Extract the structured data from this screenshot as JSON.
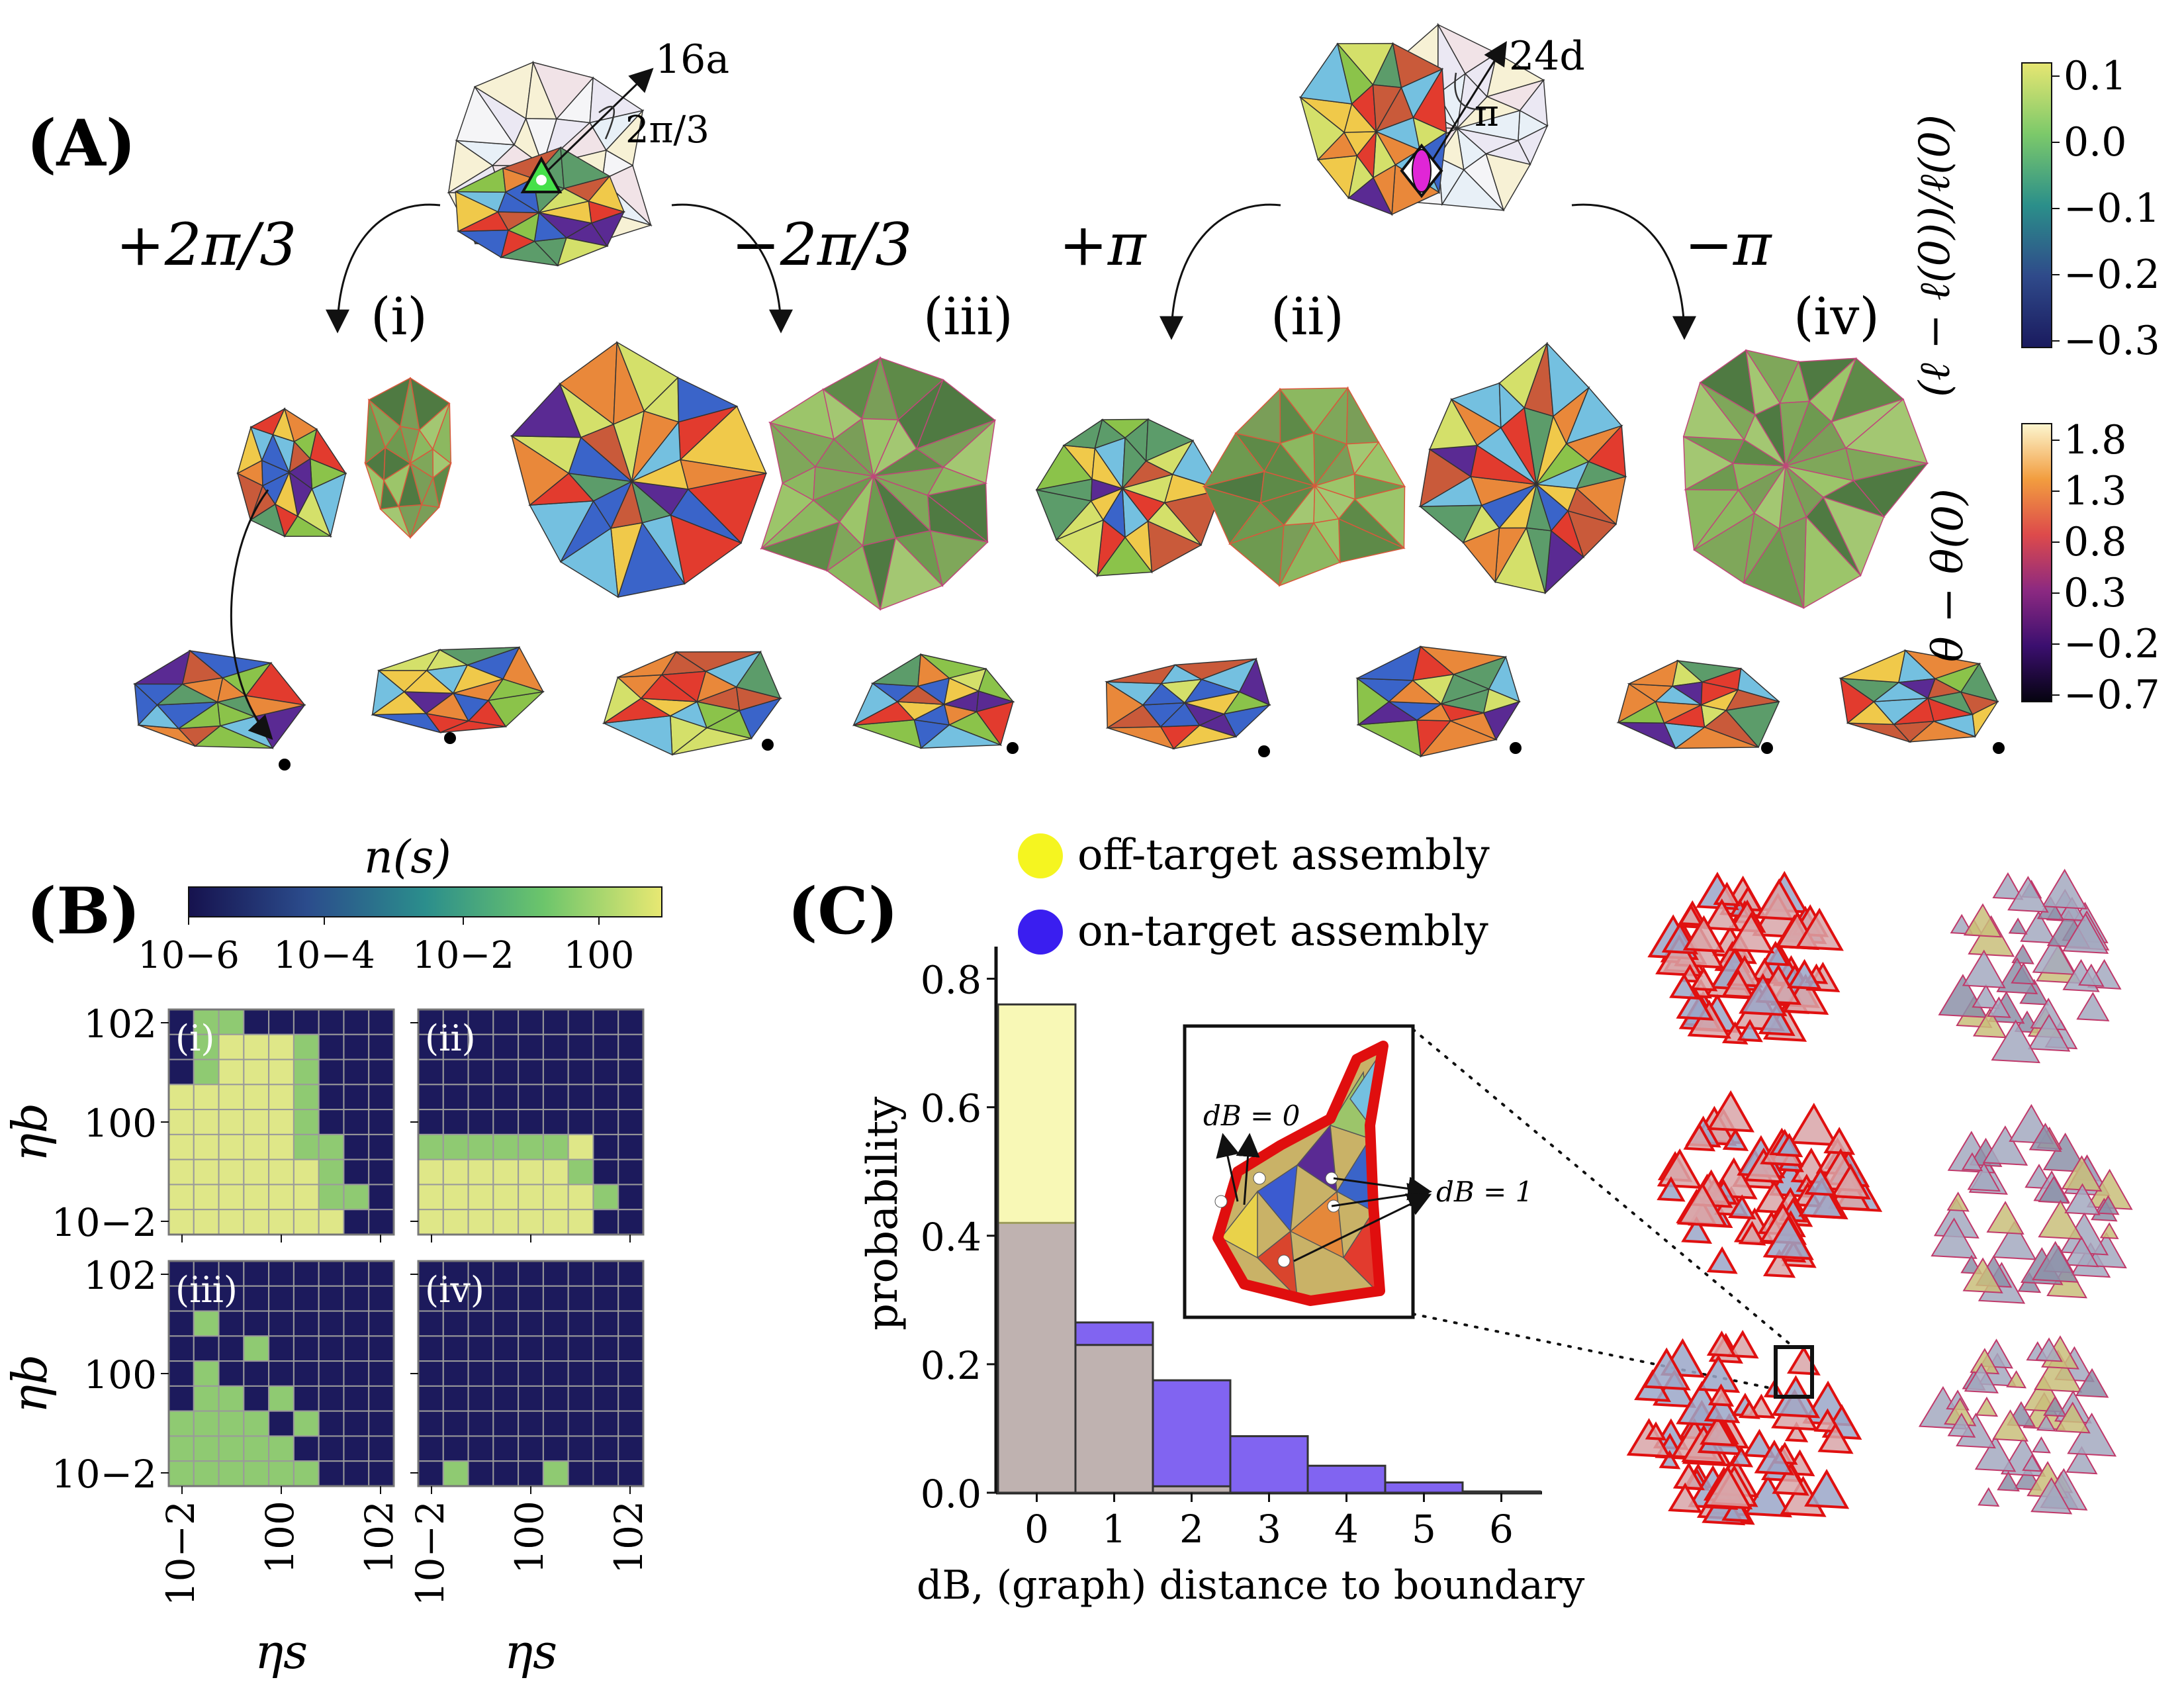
{
  "panel_A": {
    "label": "(A)",
    "top_left": {
      "order": "16a",
      "angle": "2π/3",
      "plus": "+2π/3",
      "minus": "−2π/3"
    },
    "top_right": {
      "order": "24d",
      "angle": "π",
      "plus": "+π",
      "minus": "−π"
    },
    "roman": [
      "(i)",
      "(iii)",
      "(ii)",
      "(iv)"
    ],
    "colorbar_strain": {
      "label": "(ℓ − ℓ(0))/ℓ(0)",
      "ticks": [
        "0.1",
        "0.0",
        "−0.1",
        "−0.2",
        "−0.3"
      ],
      "colors": [
        "#1a1a5e",
        "#2f4a8a",
        "#2b8f8a",
        "#7cc96a",
        "#e7e672"
      ]
    },
    "colorbar_angle": {
      "label": "θ − θ(0)",
      "ticks": [
        "1.8",
        "1.3",
        "0.8",
        "0.3",
        "−0.2",
        "−0.7"
      ],
      "colors": [
        "#05030f",
        "#3b0f6f",
        "#8c2981",
        "#dd4a4b",
        "#f29d3f",
        "#fcf6d0"
      ]
    },
    "face_colors": [
      "#e23b2e",
      "#3a64c9",
      "#f0c94a",
      "#5a2a93",
      "#8bc34a",
      "#e9883a",
      "#74c0e0",
      "#d4e06a",
      "#5c9c6a",
      "#c95a3a"
    ]
  },
  "panel_B": {
    "label": "(B)",
    "colorbar": {
      "label": "n(s)",
      "ticks": [
        "10−6",
        "10−4",
        "10−2",
        "100"
      ],
      "colors": [
        "#16124e",
        "#2b4c8c",
        "#2b8e8c",
        "#6cc56b",
        "#e8e872"
      ]
    },
    "ylabel": "ηb",
    "xlabel": "ηs",
    "y_ticks": [
      "102",
      "100",
      "10−2"
    ],
    "x_ticks": [
      "10−2",
      "100",
      "102"
    ],
    "cell_colors": {
      "0": "#1c1a5c",
      "1": "#8fca72",
      "2": "#dfe788"
    },
    "heatmaps": [
      {
        "name": "(i)",
        "grid": [
          [
            0,
            1,
            1,
            0,
            0,
            0,
            0,
            0,
            0
          ],
          [
            0,
            1,
            2,
            2,
            2,
            1,
            0,
            0,
            0
          ],
          [
            0,
            1,
            2,
            2,
            2,
            1,
            0,
            0,
            0
          ],
          [
            2,
            2,
            2,
            2,
            2,
            1,
            0,
            0,
            0
          ],
          [
            2,
            2,
            2,
            2,
            2,
            1,
            0,
            0,
            0
          ],
          [
            2,
            2,
            2,
            2,
            2,
            1,
            1,
            0,
            0
          ],
          [
            2,
            2,
            2,
            2,
            2,
            2,
            1,
            0,
            0
          ],
          [
            2,
            2,
            2,
            2,
            2,
            2,
            1,
            1,
            0
          ],
          [
            2,
            2,
            2,
            2,
            2,
            2,
            2,
            0,
            0
          ]
        ]
      },
      {
        "name": "(ii)",
        "grid": [
          [
            0,
            0,
            0,
            0,
            0,
            0,
            0,
            0,
            0
          ],
          [
            0,
            0,
            0,
            0,
            0,
            0,
            0,
            0,
            0
          ],
          [
            0,
            0,
            0,
            0,
            0,
            0,
            0,
            0,
            0
          ],
          [
            0,
            0,
            0,
            0,
            0,
            0,
            0,
            0,
            0
          ],
          [
            0,
            0,
            0,
            0,
            0,
            0,
            0,
            0,
            0
          ],
          [
            1,
            1,
            1,
            1,
            1,
            1,
            2,
            0,
            0
          ],
          [
            2,
            2,
            2,
            2,
            2,
            2,
            1,
            0,
            0
          ],
          [
            2,
            2,
            2,
            2,
            2,
            2,
            2,
            1,
            0
          ],
          [
            2,
            2,
            2,
            2,
            2,
            2,
            2,
            0,
            0
          ]
        ]
      },
      {
        "name": "(iii)",
        "grid": [
          [
            0,
            0,
            0,
            0,
            0,
            0,
            0,
            0,
            0
          ],
          [
            0,
            0,
            0,
            0,
            0,
            0,
            0,
            0,
            0
          ],
          [
            0,
            1,
            0,
            0,
            0,
            0,
            0,
            0,
            0
          ],
          [
            0,
            0,
            0,
            1,
            0,
            0,
            0,
            0,
            0
          ],
          [
            0,
            1,
            0,
            0,
            0,
            0,
            0,
            0,
            0
          ],
          [
            0,
            1,
            1,
            0,
            1,
            0,
            0,
            0,
            0
          ],
          [
            1,
            1,
            1,
            1,
            0,
            1,
            0,
            0,
            0
          ],
          [
            1,
            1,
            1,
            1,
            1,
            0,
            0,
            0,
            0
          ],
          [
            1,
            1,
            1,
            1,
            1,
            1,
            0,
            0,
            0
          ]
        ]
      },
      {
        "name": "(iv)",
        "grid": [
          [
            0,
            0,
            0,
            0,
            0,
            0,
            0,
            0,
            0
          ],
          [
            0,
            0,
            0,
            0,
            0,
            0,
            0,
            0,
            0
          ],
          [
            0,
            0,
            0,
            0,
            0,
            0,
            0,
            0,
            0
          ],
          [
            0,
            0,
            0,
            0,
            0,
            0,
            0,
            0,
            0
          ],
          [
            0,
            0,
            0,
            0,
            0,
            0,
            0,
            0,
            0
          ],
          [
            0,
            0,
            0,
            0,
            0,
            0,
            0,
            0,
            0
          ],
          [
            0,
            0,
            0,
            0,
            0,
            0,
            0,
            0,
            0
          ],
          [
            0,
            0,
            0,
            0,
            0,
            0,
            0,
            0,
            0
          ],
          [
            0,
            1,
            0,
            0,
            0,
            1,
            0,
            0,
            0
          ]
        ]
      }
    ]
  },
  "panel_C": {
    "label": "(C)",
    "inset": {
      "d0": "dB = 0",
      "d1": "dB = 1"
    }
  },
  "chart_data": {
    "type": "bar",
    "title": "",
    "xlabel": "dB, (graph) distance to boundary",
    "ylabel": "probability",
    "categories": [
      "0",
      "1",
      "2",
      "3",
      "4",
      "5",
      "6"
    ],
    "ylim": [
      0,
      0.85
    ],
    "yticks": [
      "0.0",
      "0.2",
      "0.4",
      "0.6",
      "0.8"
    ],
    "series": [
      {
        "name": "off-target assembly",
        "color": "#f2f27a",
        "values": [
          0.76,
          0.23,
          0.01,
          0.0,
          0.0,
          0.0,
          0.0
        ]
      },
      {
        "name": "on-target assembly",
        "color": "#7a5cf0",
        "values": [
          0.42,
          0.265,
          0.175,
          0.088,
          0.042,
          0.016,
          0.002
        ]
      }
    ]
  }
}
